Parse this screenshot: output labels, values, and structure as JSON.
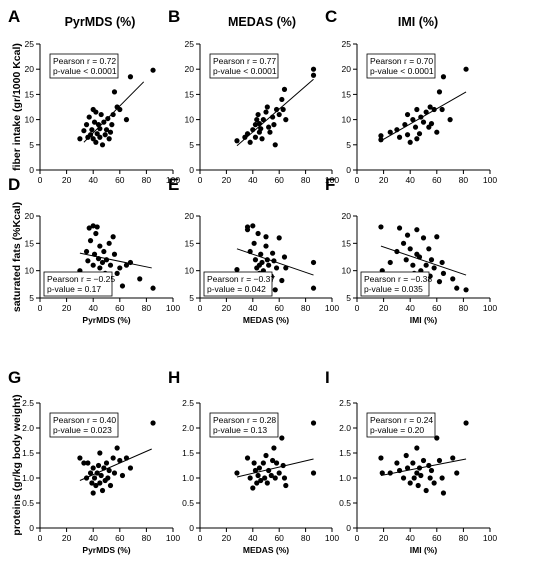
{
  "column_titles": [
    "PyrMDS (%)",
    "MEDAS (%)",
    "IMI (%)"
  ],
  "row_labels": [
    "fiber intake (gr/1000 Kcal)",
    "saturated fats (%Kcal)",
    "proteins (gr/kg body weight)"
  ],
  "chart_data": [
    {
      "type": "scatter",
      "panel": "A",
      "row": 0,
      "col": 0,
      "xlabel": "",
      "xlim": [
        0,
        100
      ],
      "ylim": [
        0,
        25
      ],
      "xticks": [
        "0",
        "20",
        "40",
        "60",
        "80",
        "100"
      ],
      "yticks": [
        "0",
        "5",
        "10",
        "15",
        "20",
        "25"
      ],
      "stats": [
        "Pearson r = 0.72",
        "p-value < 0.0001"
      ],
      "stats_position": "top-left",
      "fit": {
        "x": [
          33,
          78
        ],
        "y": [
          5.5,
          17.5
        ]
      },
      "points": [
        [
          30,
          6.2
        ],
        [
          33,
          7.8
        ],
        [
          35,
          9
        ],
        [
          36,
          6.5
        ],
        [
          37,
          10.5
        ],
        [
          38,
          7
        ],
        [
          39,
          8
        ],
        [
          40,
          12
        ],
        [
          40,
          6.2
        ],
        [
          41,
          9.5
        ],
        [
          42,
          5.5
        ],
        [
          42,
          11.5
        ],
        [
          43,
          7.2
        ],
        [
          44,
          9
        ],
        [
          45,
          6.5
        ],
        [
          45,
          8.2
        ],
        [
          46,
          11
        ],
        [
          47,
          5
        ],
        [
          48,
          9.5
        ],
        [
          49,
          7
        ],
        [
          50,
          8
        ],
        [
          51,
          10.2
        ],
        [
          52,
          6.2
        ],
        [
          53,
          7.5
        ],
        [
          54,
          9
        ],
        [
          55,
          11
        ],
        [
          56,
          15.5
        ],
        [
          58,
          12.5
        ],
        [
          60,
          12
        ],
        [
          65,
          10
        ],
        [
          68,
          18.5
        ],
        [
          85,
          19.8
        ]
      ]
    },
    {
      "type": "scatter",
      "panel": "B",
      "row": 0,
      "col": 1,
      "xlabel": "",
      "xlim": [
        0,
        100
      ],
      "ylim": [
        0,
        25
      ],
      "xticks": [
        "0",
        "20",
        "40",
        "60",
        "80",
        "100"
      ],
      "yticks": [
        "0",
        "5",
        "10",
        "15",
        "20",
        "25"
      ],
      "stats": [
        "Pearson r = 0.77",
        "p-value < 0.0001"
      ],
      "stats_position": "top-left",
      "fit": {
        "x": [
          28,
          86
        ],
        "y": [
          4.8,
          18
        ]
      },
      "points": [
        [
          28,
          5.8
        ],
        [
          34,
          6.5
        ],
        [
          36,
          7.2
        ],
        [
          38,
          5.5
        ],
        [
          40,
          8
        ],
        [
          42,
          9
        ],
        [
          42,
          6.5
        ],
        [
          43,
          10
        ],
        [
          44,
          11
        ],
        [
          45,
          7.5
        ],
        [
          45,
          9.2
        ],
        [
          46,
          8.2
        ],
        [
          47,
          6.2
        ],
        [
          48,
          10
        ],
        [
          50,
          11.5
        ],
        [
          51,
          12.5
        ],
        [
          52,
          8.5
        ],
        [
          53,
          7.5
        ],
        [
          55,
          10.5
        ],
        [
          56,
          9
        ],
        [
          57,
          5
        ],
        [
          58,
          12
        ],
        [
          60,
          11
        ],
        [
          62,
          14
        ],
        [
          63,
          12
        ],
        [
          64,
          16
        ],
        [
          65,
          10
        ],
        [
          86,
          18.8
        ],
        [
          86,
          20
        ]
      ]
    },
    {
      "type": "scatter",
      "panel": "C",
      "row": 0,
      "col": 2,
      "xlabel": "",
      "xlim": [
        0,
        100
      ],
      "ylim": [
        0,
        25
      ],
      "xticks": [
        "0",
        "20",
        "40",
        "60",
        "80",
        "100"
      ],
      "yticks": [
        "0",
        "5",
        "10",
        "15",
        "20",
        "25"
      ],
      "stats": [
        "Pearson r = 0.70",
        "p-value < 0.0001"
      ],
      "stats_position": "top-left",
      "fit": {
        "x": [
          18,
          82
        ],
        "y": [
          5.8,
          15.5
        ]
      },
      "points": [
        [
          18,
          6
        ],
        [
          18,
          6.8
        ],
        [
          25,
          7.5
        ],
        [
          30,
          8
        ],
        [
          32,
          6.5
        ],
        [
          36,
          9
        ],
        [
          38,
          11
        ],
        [
          38,
          7
        ],
        [
          40,
          5.5
        ],
        [
          42,
          10
        ],
        [
          44,
          8.5
        ],
        [
          45,
          12
        ],
        [
          45,
          6.2
        ],
        [
          47,
          7.2
        ],
        [
          48,
          10.5
        ],
        [
          50,
          9.5
        ],
        [
          52,
          11.5
        ],
        [
          54,
          8.5
        ],
        [
          55,
          12.5
        ],
        [
          56,
          9.2
        ],
        [
          58,
          12
        ],
        [
          60,
          7.5
        ],
        [
          62,
          15.5
        ],
        [
          64,
          12
        ],
        [
          65,
          18.5
        ],
        [
          70,
          10
        ],
        [
          82,
          20
        ]
      ]
    },
    {
      "type": "scatter",
      "panel": "D",
      "row": 1,
      "col": 0,
      "xlabel": "PyrMDS (%)",
      "xlim": [
        0,
        100
      ],
      "ylim": [
        5,
        20
      ],
      "xticks": [
        "0",
        "20",
        "40",
        "60",
        "80",
        "100"
      ],
      "yticks": [
        "5",
        "10",
        "15",
        "20"
      ],
      "stats": [
        "Pearson r = −0.25",
        "p-value = 0.17"
      ],
      "stats_position": "bottom-left",
      "fit": {
        "x": [
          30,
          84
        ],
        "y": [
          13.2,
          10.5
        ]
      },
      "points": [
        [
          30,
          10
        ],
        [
          35,
          13.5
        ],
        [
          36,
          11.8
        ],
        [
          37,
          17.8
        ],
        [
          38,
          15.5
        ],
        [
          39,
          8.5
        ],
        [
          40,
          18.2
        ],
        [
          40,
          11
        ],
        [
          41,
          13
        ],
        [
          42,
          9
        ],
        [
          42,
          16.8
        ],
        [
          43,
          18
        ],
        [
          44,
          12.2
        ],
        [
          45,
          10.5
        ],
        [
          45,
          14.5
        ],
        [
          46,
          8
        ],
        [
          47,
          11.5
        ],
        [
          48,
          13.5
        ],
        [
          49,
          9.5
        ],
        [
          50,
          12
        ],
        [
          52,
          15
        ],
        [
          53,
          11
        ],
        [
          55,
          16.2
        ],
        [
          56,
          13
        ],
        [
          58,
          9.5
        ],
        [
          60,
          10.5
        ],
        [
          62,
          7.2
        ],
        [
          65,
          11
        ],
        [
          68,
          11.5
        ],
        [
          75,
          8.5
        ],
        [
          85,
          6.8
        ]
      ]
    },
    {
      "type": "scatter",
      "panel": "E",
      "row": 1,
      "col": 1,
      "xlabel": "MEDAS (%)",
      "xlim": [
        0,
        100
      ],
      "ylim": [
        5,
        20
      ],
      "xticks": [
        "0",
        "20",
        "40",
        "60",
        "80",
        "100"
      ],
      "yticks": [
        "5",
        "10",
        "15",
        "20"
      ],
      "stats": [
        "Pearson r = −0.37",
        "p-value = 0.042"
      ],
      "stats_position": "bottom-left",
      "fit": {
        "x": [
          28,
          86
        ],
        "y": [
          14,
          9.2
        ]
      },
      "points": [
        [
          28,
          10.2
        ],
        [
          36,
          18
        ],
        [
          36,
          17.5
        ],
        [
          38,
          13.5
        ],
        [
          40,
          18.2
        ],
        [
          41,
          15
        ],
        [
          42,
          12
        ],
        [
          42,
          8.5
        ],
        [
          43,
          10.5
        ],
        [
          44,
          16.8
        ],
        [
          45,
          11
        ],
        [
          45,
          9.5
        ],
        [
          46,
          13
        ],
        [
          47,
          11.5
        ],
        [
          48,
          10
        ],
        [
          50,
          14.5
        ],
        [
          50,
          16.2
        ],
        [
          51,
          12
        ],
        [
          52,
          11
        ],
        [
          54,
          9
        ],
        [
          55,
          13.2
        ],
        [
          56,
          11.8
        ],
        [
          57,
          6.5
        ],
        [
          58,
          10.5
        ],
        [
          60,
          16
        ],
        [
          62,
          8.2
        ],
        [
          64,
          12.5
        ],
        [
          65,
          10.5
        ],
        [
          86,
          11.5
        ],
        [
          86,
          6.8
        ]
      ]
    },
    {
      "type": "scatter",
      "panel": "F",
      "row": 1,
      "col": 2,
      "xlabel": "IMI (%)",
      "xlim": [
        0,
        100
      ],
      "ylim": [
        5,
        20
      ],
      "xticks": [
        "0",
        "20",
        "40",
        "60",
        "80",
        "100"
      ],
      "yticks": [
        "5",
        "10",
        "15",
        "20"
      ],
      "stats": [
        "Pearson r = −0.38",
        "p-value = 0.035"
      ],
      "stats_position": "bottom-left",
      "fit": {
        "x": [
          18,
          82
        ],
        "y": [
          14.5,
          9.2
        ]
      },
      "points": [
        [
          18,
          18
        ],
        [
          19,
          10
        ],
        [
          25,
          11.5
        ],
        [
          30,
          13.5
        ],
        [
          32,
          17.8
        ],
        [
          35,
          15
        ],
        [
          37,
          12
        ],
        [
          38,
          16.5
        ],
        [
          40,
          14
        ],
        [
          40,
          8.5
        ],
        [
          42,
          11
        ],
        [
          43,
          9.5
        ],
        [
          45,
          17.5
        ],
        [
          45,
          13
        ],
        [
          46,
          7.8
        ],
        [
          47,
          12.5
        ],
        [
          48,
          10
        ],
        [
          50,
          16
        ],
        [
          52,
          11
        ],
        [
          54,
          14
        ],
        [
          55,
          9
        ],
        [
          56,
          12
        ],
        [
          58,
          10.5
        ],
        [
          60,
          16.2
        ],
        [
          62,
          8
        ],
        [
          64,
          11.5
        ],
        [
          65,
          9.5
        ],
        [
          72,
          8.5
        ],
        [
          75,
          6.8
        ],
        [
          82,
          6.5
        ]
      ]
    },
    {
      "type": "scatter",
      "panel": "G",
      "row": 2,
      "col": 0,
      "xlabel": "PyrMDS (%)",
      "xlim": [
        0,
        100
      ],
      "ylim": [
        0,
        2.5
      ],
      "xticks": [
        "0",
        "20",
        "40",
        "60",
        "80",
        "100"
      ],
      "yticks": [
        "0",
        "0.5",
        "1.0",
        "1.5",
        "2.0",
        "2.5"
      ],
      "stats": [
        "Pearson r = 0.40",
        "p-value = 0.023"
      ],
      "stats_position": "top-left",
      "fit": {
        "x": [
          30,
          84
        ],
        "y": [
          0.95,
          1.58
        ]
      },
      "points": [
        [
          30,
          1.4
        ],
        [
          33,
          1.3
        ],
        [
          35,
          1.0
        ],
        [
          36,
          1.3
        ],
        [
          38,
          1.1
        ],
        [
          39,
          0.9
        ],
        [
          40,
          1.2
        ],
        [
          40,
          0.7
        ],
        [
          41,
          1.0
        ],
        [
          42,
          0.85
        ],
        [
          43,
          1.1
        ],
        [
          44,
          1.25
        ],
        [
          45,
          0.9
        ],
        [
          45,
          1.5
        ],
        [
          46,
          1.05
        ],
        [
          47,
          0.75
        ],
        [
          48,
          1.2
        ],
        [
          49,
          0.95
        ],
        [
          50,
          1.3
        ],
        [
          51,
          1.0
        ],
        [
          52,
          1.15
        ],
        [
          53,
          0.85
        ],
        [
          55,
          1.4
        ],
        [
          56,
          1.1
        ],
        [
          58,
          1.6
        ],
        [
          60,
          1.35
        ],
        [
          62,
          1.05
        ],
        [
          65,
          1.4
        ],
        [
          68,
          1.2
        ],
        [
          85,
          2.1
        ]
      ]
    },
    {
      "type": "scatter",
      "panel": "H",
      "row": 2,
      "col": 1,
      "xlabel": "MEDAS (%)",
      "xlim": [
        0,
        100
      ],
      "ylim": [
        0,
        2.5
      ],
      "xticks": [
        "0",
        "20",
        "40",
        "60",
        "80",
        "100"
      ],
      "yticks": [
        "0",
        "0.5",
        "1.0",
        "1.5",
        "2.0",
        "2.5"
      ],
      "stats": [
        "Pearson r = 0.28",
        "p-value = 0.13"
      ],
      "stats_position": "top-left",
      "fit": {
        "x": [
          28,
          86
        ],
        "y": [
          1.02,
          1.38
        ]
      },
      "points": [
        [
          28,
          1.1
        ],
        [
          36,
          1.4
        ],
        [
          38,
          1.0
        ],
        [
          40,
          0.8
        ],
        [
          41,
          1.3
        ],
        [
          42,
          1.15
        ],
        [
          43,
          0.9
        ],
        [
          44,
          1.05
        ],
        [
          45,
          1.2
        ],
        [
          46,
          0.95
        ],
        [
          48,
          1.3
        ],
        [
          49,
          1.0
        ],
        [
          50,
          1.45
        ],
        [
          51,
          0.9
        ],
        [
          52,
          1.15
        ],
        [
          54,
          1.05
        ],
        [
          55,
          1.35
        ],
        [
          56,
          1.6
        ],
        [
          57,
          1.0
        ],
        [
          58,
          1.3
        ],
        [
          60,
          1.1
        ],
        [
          62,
          1.8
        ],
        [
          63,
          1.25
        ],
        [
          64,
          1.0
        ],
        [
          65,
          0.85
        ],
        [
          86,
          2.1
        ],
        [
          86,
          1.1
        ]
      ]
    },
    {
      "type": "scatter",
      "panel": "I",
      "row": 2,
      "col": 2,
      "xlabel": "IMI (%)",
      "xlim": [
        0,
        100
      ],
      "ylim": [
        0,
        2.5
      ],
      "xticks": [
        "0",
        "20",
        "40",
        "60",
        "80",
        "100"
      ],
      "yticks": [
        "0",
        "0.5",
        "1.0",
        "1.5",
        "2.0",
        "2.5"
      ],
      "stats": [
        "Pearson r = 0.24",
        "p-value = 0.20"
      ],
      "stats_position": "top-left",
      "fit": {
        "x": [
          18,
          82
        ],
        "y": [
          1.05,
          1.38
        ]
      },
      "points": [
        [
          18,
          1.4
        ],
        [
          19,
          1.1
        ],
        [
          25,
          1.1
        ],
        [
          30,
          1.3
        ],
        [
          32,
          1.15
        ],
        [
          35,
          1.0
        ],
        [
          37,
          1.45
        ],
        [
          38,
          1.2
        ],
        [
          40,
          0.9
        ],
        [
          42,
          1.3
        ],
        [
          43,
          1.0
        ],
        [
          45,
          1.1
        ],
        [
          45,
          1.6
        ],
        [
          46,
          0.85
        ],
        [
          47,
          1.2
        ],
        [
          48,
          1.05
        ],
        [
          50,
          1.35
        ],
        [
          52,
          0.75
        ],
        [
          54,
          1.25
        ],
        [
          55,
          1.0
        ],
        [
          56,
          1.15
        ],
        [
          58,
          0.9
        ],
        [
          60,
          1.8
        ],
        [
          62,
          1.35
        ],
        [
          64,
          1.0
        ],
        [
          65,
          0.7
        ],
        [
          72,
          1.4
        ],
        [
          75,
          1.1
        ],
        [
          82,
          2.1
        ]
      ]
    }
  ]
}
